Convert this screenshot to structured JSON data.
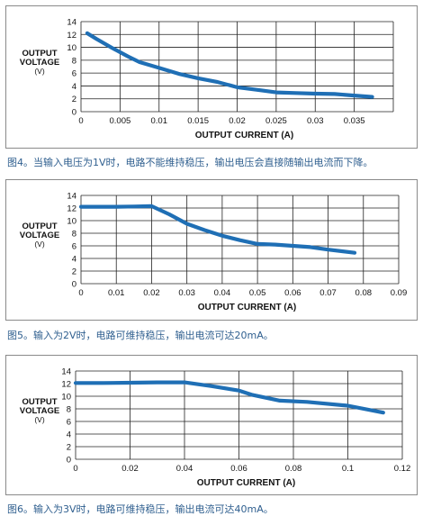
{
  "chart_data": [
    {
      "type": "line",
      "xlabel": "OUTPUT CURRENT (A)",
      "ylabel": [
        "OUTPUT",
        "VOLTAGE",
        "(V)"
      ],
      "xlim": [
        0,
        0.04
      ],
      "ylim": [
        0,
        14
      ],
      "xticks": [
        "0",
        "0.005",
        "0.01",
        "0.015",
        "0.02",
        "0.025",
        "0.03",
        "0.035"
      ],
      "xtick_values": [
        0,
        0.005,
        0.01,
        0.015,
        0.02,
        0.025,
        0.03,
        0.035
      ],
      "yticks": [
        "0",
        "2",
        "4",
        "6",
        "8",
        "10",
        "12",
        "14"
      ],
      "ytick_values": [
        0,
        2,
        4,
        6,
        8,
        10,
        12,
        14
      ],
      "grid": true,
      "line_color": "#1f6fb5",
      "series": [
        {
          "x": [
            0.0008,
            0.002,
            0.004,
            0.006,
            0.0075,
            0.01,
            0.0125,
            0.015,
            0.0175,
            0.02,
            0.0225,
            0.025,
            0.0275,
            0.03,
            0.0325,
            0.035,
            0.0373
          ],
          "y": [
            12.2,
            11.3,
            9.9,
            8.6,
            7.7,
            6.8,
            5.9,
            5.2,
            4.6,
            3.8,
            3.4,
            3.0,
            2.9,
            2.8,
            2.75,
            2.5,
            2.3
          ]
        }
      ],
      "caption": "图4。当输入电压为1V时，电路不能维持稳压，输出电压会直接随输出电流而下降。"
    },
    {
      "type": "line",
      "xlabel": "OUTPUT CURRENT (A)",
      "ylabel": [
        "OUTPUT",
        "VOLTAGE",
        "(V)"
      ],
      "xlim": [
        0,
        0.09
      ],
      "ylim": [
        0,
        14
      ],
      "xticks": [
        "0",
        "0.01",
        "0.02",
        "0.03",
        "0.04",
        "0.05",
        "0.06",
        "0.07",
        "0.08",
        "0.09"
      ],
      "xtick_values": [
        0,
        0.01,
        0.02,
        0.03,
        0.04,
        0.05,
        0.06,
        0.07,
        0.08,
        0.09
      ],
      "yticks": [
        "0",
        "2",
        "4",
        "6",
        "8",
        "10",
        "12",
        "14"
      ],
      "ytick_values": [
        0,
        2,
        4,
        6,
        8,
        10,
        12,
        14
      ],
      "grid": true,
      "line_color": "#1f6fb5",
      "series": [
        {
          "x": [
            0,
            0.01,
            0.015,
            0.02,
            0.025,
            0.03,
            0.035,
            0.04,
            0.045,
            0.05,
            0.055,
            0.06,
            0.065,
            0.07,
            0.0775
          ],
          "y": [
            12.2,
            12.2,
            12.25,
            12.3,
            11.0,
            9.5,
            8.5,
            7.6,
            6.9,
            6.3,
            6.2,
            6.0,
            5.8,
            5.4,
            4.9
          ]
        }
      ],
      "caption": "图5。输入为2V时，电路可维持稳压，输出电流可达20mA。"
    },
    {
      "type": "line",
      "xlabel": "OUTPUT CURRENT (A)",
      "ylabel": [
        "OUTPUT",
        "VOLTAGE",
        "(V)"
      ],
      "xlim": [
        0,
        0.12
      ],
      "ylim": [
        0,
        14
      ],
      "xticks": [
        "0",
        "0.02",
        "0.04",
        "0.06",
        "0.08",
        "0.1",
        "0.12"
      ],
      "xtick_values": [
        0,
        0.02,
        0.04,
        0.06,
        0.08,
        0.1,
        0.12
      ],
      "yticks": [
        "0",
        "2",
        "4",
        "6",
        "8",
        "10",
        "12",
        "14"
      ],
      "ytick_values": [
        0,
        2,
        4,
        6,
        8,
        10,
        12,
        14
      ],
      "grid": true,
      "line_color": "#1f6fb5",
      "series": [
        {
          "x": [
            0,
            0.01,
            0.02,
            0.03,
            0.04,
            0.05,
            0.06,
            0.065,
            0.075,
            0.085,
            0.1,
            0.113
          ],
          "y": [
            12.1,
            12.1,
            12.15,
            12.2,
            12.2,
            11.6,
            10.9,
            10.2,
            9.3,
            9.1,
            8.5,
            7.4
          ]
        }
      ],
      "caption": "图6。输入为3V时，电路可维持稳压，输出电流可达40mA。"
    }
  ]
}
